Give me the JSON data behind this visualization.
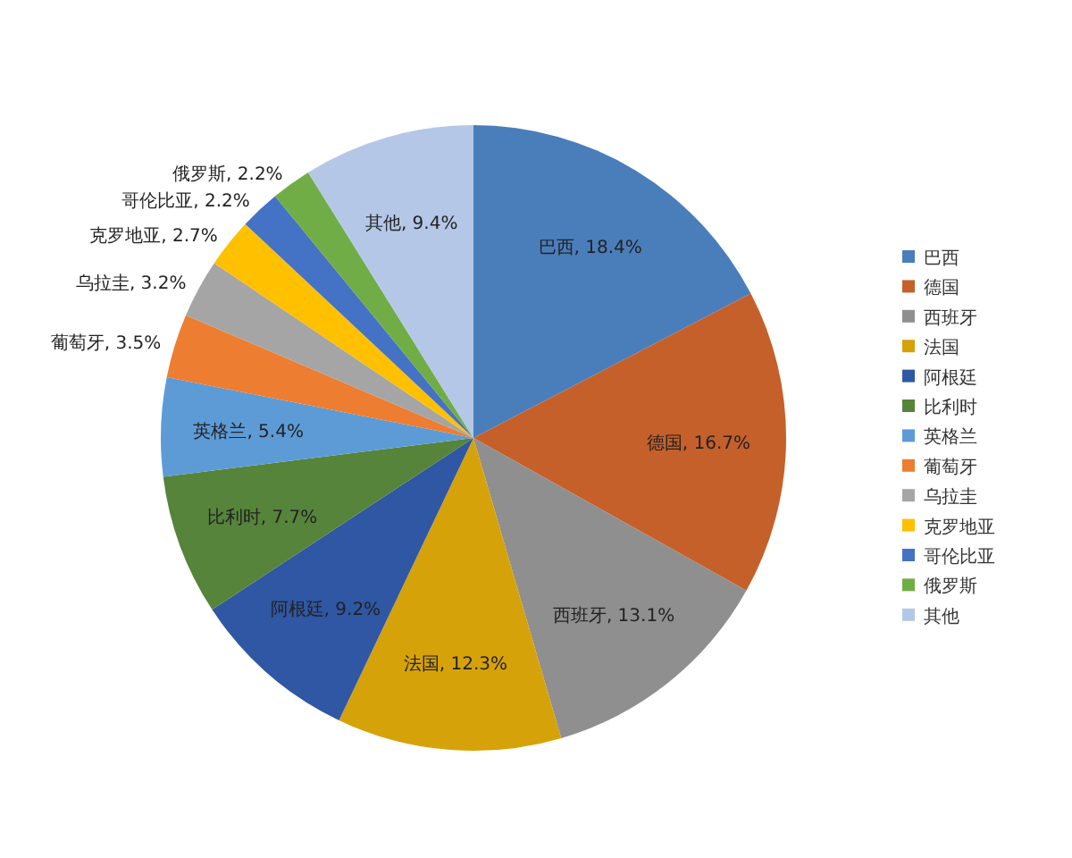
{
  "chart_data": {
    "type": "pie",
    "categories": [
      "巴西",
      "德国",
      "西班牙",
      "法国",
      "阿根廷",
      "比利时",
      "英格兰",
      "葡萄牙",
      "乌拉圭",
      "克罗地亚",
      "哥伦比亚",
      "俄罗斯",
      "其他"
    ],
    "values": [
      18.4,
      16.7,
      13.1,
      12.3,
      9.2,
      7.7,
      5.4,
      3.5,
      3.2,
      2.7,
      2.2,
      2.2,
      9.4
    ],
    "colors": [
      "#4a7ebb",
      "#c5602a",
      "#8f8f8f",
      "#d6a20a",
      "#2f57a3",
      "#55843a",
      "#5d9bd6",
      "#ed7d31",
      "#a5a5a5",
      "#ffc000",
      "#4472c4",
      "#70ad47",
      "#b4c7e7"
    ],
    "value_labels": [
      "巴西, 18.4%",
      "德国, 16.7%",
      "西班牙, 13.1%",
      "法国, 12.3%",
      "阿根廷, 9.2%",
      "比利时, 7.7%",
      "英格兰, 5.4%",
      "葡萄牙, 3.5%",
      "乌拉圭, 3.2%",
      "克罗地亚, 2.7%",
      "哥伦比亚, 2.2%",
      "俄罗斯, 2.2%",
      "其他, 9.4%"
    ],
    "legend": "right"
  }
}
